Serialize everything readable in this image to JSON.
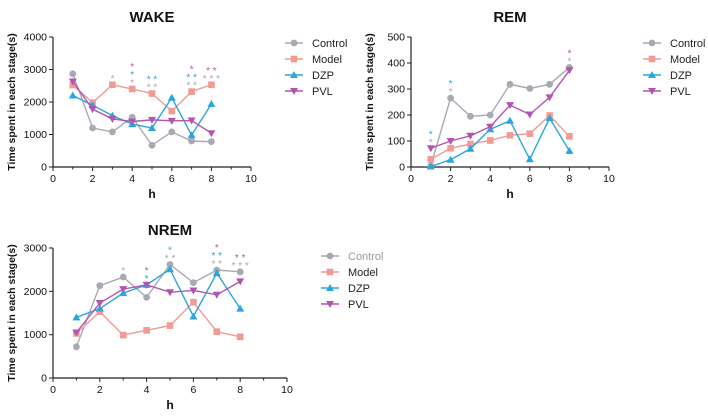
{
  "colors": {
    "Control": "#a9a9b3",
    "Model": "#f29a94",
    "DZP": "#2aa6dd",
    "PVL": "#b255b2",
    "axis": "#222222"
  },
  "chart_data": [
    {
      "type": "line",
      "title": "WAKE",
      "xlabel": "h",
      "ylabel": "Time spent in each stage(s)",
      "xlim": [
        0,
        10
      ],
      "ylim": [
        0,
        4000
      ],
      "xticks": [
        0,
        2,
        4,
        6,
        8,
        10
      ],
      "yticks": [
        0,
        1000,
        2000,
        3000,
        4000
      ],
      "x": [
        1,
        2,
        3,
        4,
        5,
        6,
        7,
        8
      ],
      "series": [
        {
          "name": "Control",
          "values": [
            2870,
            1200,
            1080,
            1530,
            670,
            1080,
            800,
            780
          ]
        },
        {
          "name": "Model",
          "values": [
            2520,
            1980,
            2530,
            2400,
            2260,
            1720,
            2320,
            2530
          ]
        },
        {
          "name": "DZP",
          "values": [
            2200,
            1900,
            1580,
            1320,
            1200,
            2130,
            980,
            1940
          ]
        },
        {
          "name": "PVL",
          "values": [
            2630,
            1780,
            1480,
            1400,
            1450,
            1420,
            1430,
            1040
          ]
        }
      ],
      "annotations": [
        {
          "x": 3,
          "rows": [
            {
              "text": "*",
              "series": "Control"
            }
          ]
        },
        {
          "x": 4,
          "rows": [
            {
              "text": "*",
              "series": "PVL"
            },
            {
              "text": "*",
              "series": "DZP"
            },
            {
              "text": "*",
              "series": "Control"
            }
          ]
        },
        {
          "x": 5,
          "rows": [
            {
              "text": "* *",
              "series": "DZP"
            },
            {
              "text": "* *",
              "series": "Control"
            }
          ]
        },
        {
          "x": 7,
          "rows": [
            {
              "text": "*",
              "series": "PVL"
            },
            {
              "text": "* *",
              "series": "DZP"
            },
            {
              "text": "* *",
              "series": "Control"
            }
          ]
        },
        {
          "x": 8,
          "rows": [
            {
              "text": "* *",
              "series": "PVL"
            },
            {
              "text": "* * *",
              "series": "Control"
            }
          ]
        }
      ],
      "legend": [
        "Control",
        "Model",
        "DZP",
        "PVL"
      ]
    },
    {
      "type": "line",
      "title": "REM",
      "xlabel": "h",
      "ylabel": "Time spent in each stage(s)",
      "xlim": [
        0,
        10
      ],
      "ylim": [
        0,
        500
      ],
      "xticks": [
        0,
        2,
        4,
        6,
        8,
        10
      ],
      "yticks": [
        0,
        100,
        200,
        300,
        400,
        500
      ],
      "x": [
        1,
        2,
        3,
        4,
        5,
        6,
        7,
        8
      ],
      "series": [
        {
          "name": "Control",
          "values": [
            5,
            265,
            195,
            200,
            318,
            302,
            318,
            383
          ]
        },
        {
          "name": "Model",
          "values": [
            30,
            72,
            88,
            102,
            122,
            128,
            198,
            118
          ]
        },
        {
          "name": "DZP",
          "values": [
            2,
            28,
            70,
            145,
            178,
            30,
            188,
            62
          ]
        },
        {
          "name": "PVL",
          "values": [
            72,
            100,
            120,
            155,
            238,
            202,
            268,
            372
          ]
        }
      ],
      "annotations": [
        {
          "x": 1,
          "rows": [
            {
              "text": "*",
              "series": "DZP"
            },
            {
              "text": "*",
              "series": "Control"
            }
          ]
        },
        {
          "x": 2,
          "rows": [
            {
              "text": "*",
              "series": "DZP"
            },
            {
              "text": "*",
              "series": "Control"
            }
          ]
        },
        {
          "x": 8,
          "rows": [
            {
              "text": "*",
              "series": "PVL"
            },
            {
              "text": "*",
              "series": "Control"
            }
          ]
        }
      ],
      "legend": [
        "Control",
        "Model",
        "DZP",
        "PVL"
      ]
    },
    {
      "type": "line",
      "title": "NREM",
      "xlabel": "h",
      "ylabel": "Time spent in each stage(s)",
      "xlim": [
        0,
        10
      ],
      "ylim": [
        0,
        3000
      ],
      "xticks": [
        0,
        2,
        4,
        6,
        8,
        10
      ],
      "yticks": [
        0,
        1000,
        2000,
        3000
      ],
      "x": [
        1,
        2,
        3,
        4,
        5,
        6,
        7,
        8
      ],
      "series": [
        {
          "name": "Control",
          "values": [
            720,
            2130,
            2330,
            1860,
            2620,
            2200,
            2490,
            2450
          ]
        },
        {
          "name": "Model",
          "values": [
            1030,
            1530,
            990,
            1100,
            1210,
            1750,
            1070,
            950
          ]
        },
        {
          "name": "DZP",
          "values": [
            1400,
            1600,
            1960,
            2150,
            2510,
            1420,
            2420,
            1600
          ]
        },
        {
          "name": "PVL",
          "values": [
            1050,
            1730,
            2050,
            2150,
            1980,
            2020,
            1920,
            2230
          ]
        }
      ],
      "annotations": [
        {
          "x": 3,
          "rows": [
            {
              "text": "*",
              "series": "Control"
            }
          ]
        },
        {
          "x": 4,
          "rows": [
            {
              "text": "*",
              "series": "PVL"
            },
            {
              "text": "*",
              "series": "DZP"
            }
          ]
        },
        {
          "x": 5,
          "rows": [
            {
              "text": "*",
              "series": "DZP"
            },
            {
              "text": "* *",
              "series": "Control"
            }
          ]
        },
        {
          "x": 7,
          "rows": [
            {
              "text": "*",
              "series": "PVL"
            },
            {
              "text": "* *",
              "series": "DZP"
            },
            {
              "text": "* *",
              "series": "Control"
            }
          ]
        },
        {
          "x": 8,
          "rows": [
            {
              "text": "* *",
              "series": "PVL"
            },
            {
              "text": "* * *",
              "series": "Control"
            }
          ]
        }
      ],
      "legend": [
        "Control",
        "Model",
        "DZP",
        "PVL"
      ]
    }
  ]
}
